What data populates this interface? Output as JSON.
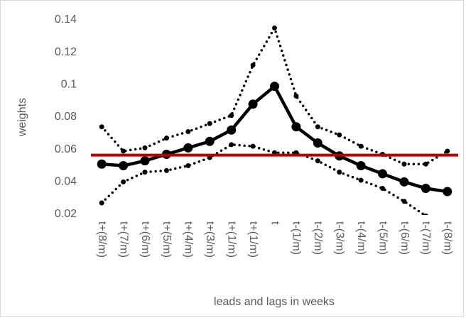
{
  "chart_data": {
    "type": "line",
    "x_label": "leads and lags in weeks",
    "y_label": "weights",
    "categories": [
      "t+(8/m)",
      "t+(7/m)",
      "t+(6/m)",
      "t+(5/m)",
      "t+(4/m)",
      "t+(3/m)",
      "t+(1/m)",
      "t+(1/m)",
      "t",
      "t-(1/m)",
      "t-(2/m)",
      "t-(3/m)",
      "t-(4/m)",
      "t-(5/m)",
      "t-(6/m)",
      "t-(7/m)",
      "t-(8/m)"
    ],
    "series": [
      {
        "color": "#000000",
        "style": "solid",
        "values": [
          0.051,
          0.05,
          0.053,
          0.057,
          0.061,
          0.065,
          0.072,
          0.088,
          0.099,
          0.074,
          0.064,
          0.056,
          0.05,
          0.045,
          0.04,
          0.036,
          0.034
        ]
      },
      {
        "color": "#000000",
        "style": "dotted",
        "values": [
          0.074,
          0.059,
          0.061,
          0.067,
          0.071,
          0.076,
          0.081,
          0.112,
          0.135,
          0.093,
          0.074,
          0.069,
          0.062,
          0.057,
          0.051,
          0.051,
          0.059
        ]
      },
      {
        "color": "#000000",
        "style": "dotted",
        "values": [
          0.027,
          0.04,
          0.046,
          0.047,
          0.05,
          0.055,
          0.063,
          0.062,
          0.058,
          0.058,
          0.053,
          0.046,
          0.041,
          0.036,
          0.028,
          0.019,
          null
        ]
      }
    ],
    "reference_line": {
      "value": 0.0565,
      "color": "#c00000"
    },
    "ylim": [
      0.02,
      0.14
    ],
    "yticks": [
      0.02,
      0.04,
      0.06,
      0.08,
      0.1,
      0.12,
      0.14
    ]
  }
}
